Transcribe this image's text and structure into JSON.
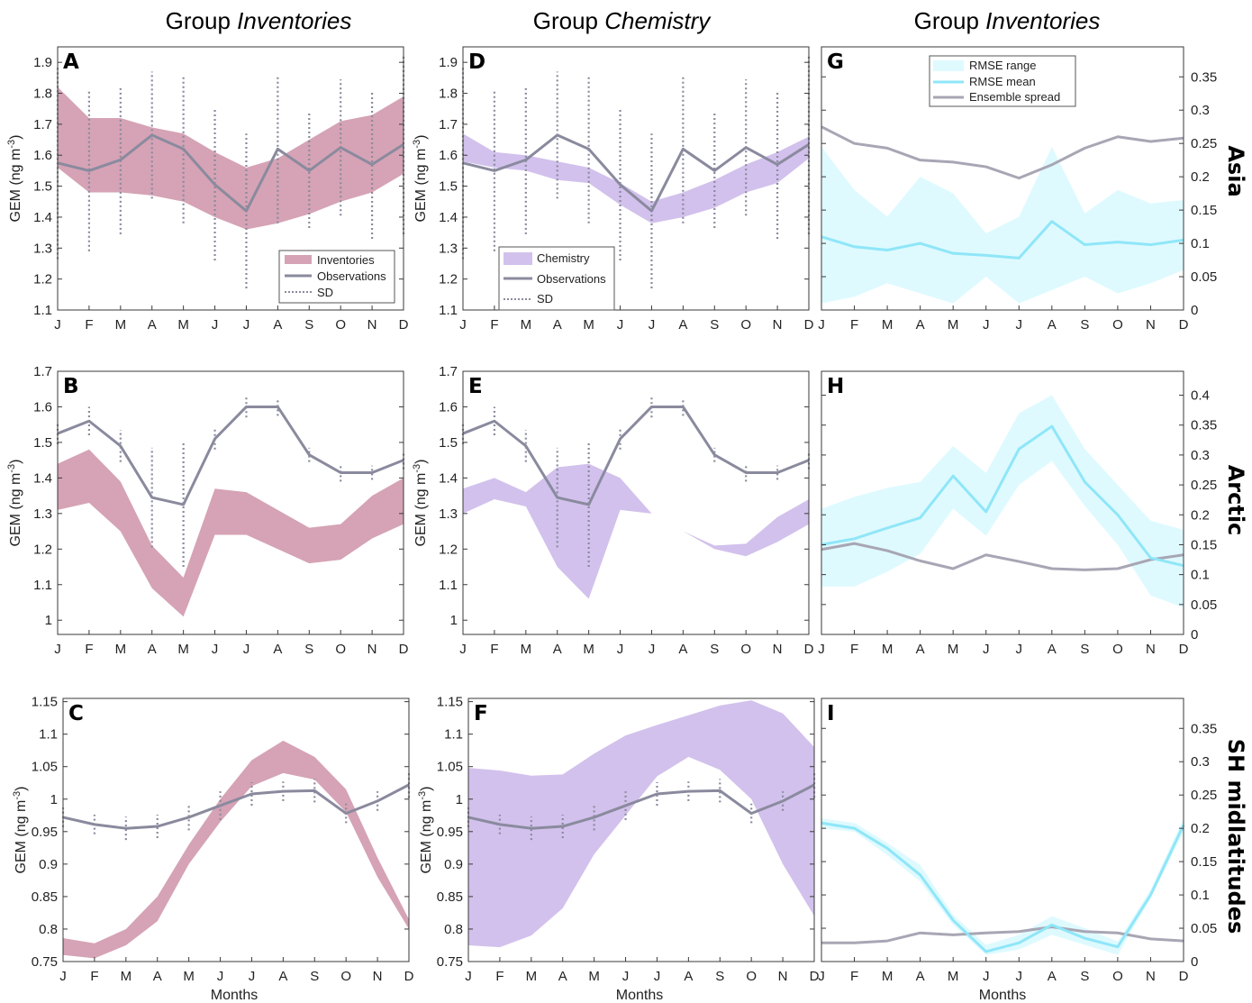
{
  "columns": [
    {
      "prefix": "Group ",
      "name": "Inventories"
    },
    {
      "prefix": "Group ",
      "name": "Chemistry"
    },
    {
      "prefix": "Group ",
      "name": "Inventories"
    }
  ],
  "rows": [
    "Asia",
    "Arctic",
    "SH midlatitudes"
  ],
  "ylabel": "GEM (ng m-3)",
  "xlabel": "Months",
  "months": [
    "J",
    "F",
    "M",
    "A",
    "M",
    "J",
    "J",
    "A",
    "S",
    "O",
    "N",
    "D"
  ],
  "colors": {
    "inventories": "#d5a3b5",
    "chemistry": "#d2c1ec",
    "observations": "#8a8a9e",
    "rmse_range": "#defaff",
    "rmse_mean": "#8fe6f8",
    "spread": "#a8a6b4"
  },
  "legends": {
    "inventories": [
      "Inventories",
      "Observations",
      "SD"
    ],
    "chemistry": [
      "Chemistry",
      "Observations",
      "SD"
    ],
    "rmse": [
      "RMSE range",
      "RMSE mean",
      "Ensemble spread"
    ]
  },
  "chart_data": [
    {
      "panel": "A",
      "type": "area",
      "row": "Asia",
      "group": "Inventories",
      "ylim": [
        1.1,
        1.95
      ],
      "yticks": [
        1.1,
        1.2,
        1.3,
        1.4,
        1.5,
        1.6,
        1.7,
        1.8,
        1.9
      ],
      "band": {
        "name": "Inventories",
        "lower": [
          1.56,
          1.48,
          1.48,
          1.47,
          1.45,
          1.4,
          1.36,
          1.38,
          1.41,
          1.45,
          1.48,
          1.54
        ],
        "upper": [
          1.82,
          1.72,
          1.72,
          1.69,
          1.67,
          1.61,
          1.56,
          1.59,
          1.65,
          1.71,
          1.73,
          1.79
        ]
      },
      "observations": [
        1.575,
        1.55,
        1.585,
        1.665,
        1.62,
        1.505,
        1.42,
        1.62,
        1.55,
        1.625,
        1.57,
        1.635
      ],
      "sd": [
        0.31,
        0.26,
        0.24,
        0.205,
        0.24,
        0.245,
        0.25,
        0.24,
        0.185,
        0.22,
        0.24,
        0.29
      ],
      "legend": "inventories"
    },
    {
      "panel": "B",
      "type": "area",
      "row": "Arctic",
      "group": "Inventories",
      "ylim": [
        0.96,
        1.7
      ],
      "yticks": [
        1,
        1.1,
        1.2,
        1.3,
        1.4,
        1.5,
        1.6,
        1.7
      ],
      "band": {
        "name": "Inventories",
        "lower": [
          1.31,
          1.33,
          1.25,
          1.09,
          1.01,
          1.24,
          1.24,
          1.2,
          1.16,
          1.17,
          1.23,
          1.27
        ],
        "upper": [
          1.44,
          1.48,
          1.39,
          1.21,
          1.12,
          1.37,
          1.36,
          1.31,
          1.26,
          1.27,
          1.35,
          1.4
        ]
      },
      "observations": [
        1.525,
        1.56,
        1.49,
        1.345,
        1.325,
        1.51,
        1.6,
        1.6,
        1.465,
        1.415,
        1.415,
        1.45
      ],
      "sd": [
        0.03,
        0.04,
        0.045,
        0.14,
        0.175,
        0.03,
        0.03,
        0.025,
        0.02,
        0.025,
        0.02,
        0.025
      ],
      "legend": null
    },
    {
      "panel": "C",
      "type": "area",
      "row": "SH midlatitudes",
      "group": "Inventories",
      "ylim": [
        0.75,
        1.155
      ],
      "yticks": [
        0.75,
        0.8,
        0.85,
        0.9,
        0.95,
        1,
        1.05,
        1.1,
        1.15
      ],
      "band": {
        "name": "Inventories",
        "lower": [
          0.76,
          0.755,
          0.775,
          0.812,
          0.9,
          0.965,
          1.02,
          1.04,
          1.03,
          0.98,
          0.88,
          0.8
        ],
        "upper": [
          0.786,
          0.778,
          0.8,
          0.85,
          0.93,
          1.0,
          1.06,
          1.09,
          1.065,
          1.015,
          0.91,
          0.815
        ]
      },
      "observations": [
        0.972,
        0.961,
        0.955,
        0.958,
        0.972,
        0.99,
        1.008,
        1.012,
        1.013,
        0.978,
        0.997,
        1.022
      ],
      "sd": [
        0.015,
        0.015,
        0.018,
        0.018,
        0.02,
        0.022,
        0.018,
        0.015,
        0.018,
        0.015,
        0.015,
        0.02
      ],
      "legend": null
    },
    {
      "panel": "D",
      "type": "area",
      "row": "Asia",
      "group": "Chemistry",
      "ylim": [
        1.1,
        1.95
      ],
      "yticks": [
        1.1,
        1.2,
        1.3,
        1.4,
        1.5,
        1.6,
        1.7,
        1.8,
        1.9
      ],
      "band": {
        "name": "Chemistry",
        "lower": [
          1.58,
          1.56,
          1.55,
          1.52,
          1.51,
          1.44,
          1.38,
          1.4,
          1.43,
          1.48,
          1.51,
          1.59
        ],
        "upper": [
          1.67,
          1.61,
          1.6,
          1.58,
          1.56,
          1.51,
          1.45,
          1.48,
          1.52,
          1.57,
          1.61,
          1.66
        ]
      },
      "observations": [
        1.575,
        1.55,
        1.585,
        1.665,
        1.62,
        1.505,
        1.42,
        1.62,
        1.55,
        1.625,
        1.57,
        1.635
      ],
      "sd": [
        0.31,
        0.26,
        0.24,
        0.205,
        0.24,
        0.245,
        0.25,
        0.24,
        0.185,
        0.22,
        0.24,
        0.29
      ],
      "legend": "chemistry"
    },
    {
      "panel": "E",
      "type": "area",
      "row": "Arctic",
      "group": "Chemistry",
      "ylim": [
        0.96,
        1.7
      ],
      "yticks": [
        1,
        1.1,
        1.2,
        1.3,
        1.4,
        1.5,
        1.6,
        1.7
      ],
      "band": {
        "name": "Chemistry",
        "lower": [
          1.3,
          1.34,
          1.32,
          1.15,
          1.06,
          1.31,
          1.3,
          1.25,
          1.2,
          1.18,
          1.22,
          1.27
        ],
        "upper": [
          1.37,
          1.4,
          1.36,
          1.43,
          1.44,
          1.4,
          1.3,
          1.25,
          1.21,
          1.215,
          1.29,
          1.34
        ]
      },
      "observations": [
        1.525,
        1.56,
        1.49,
        1.345,
        1.325,
        1.51,
        1.6,
        1.6,
        1.465,
        1.415,
        1.415,
        1.45
      ],
      "sd": [
        0.03,
        0.04,
        0.045,
        0.14,
        0.175,
        0.03,
        0.03,
        0.025,
        0.02,
        0.025,
        0.02,
        0.025
      ],
      "legend": null
    },
    {
      "panel": "F",
      "type": "area",
      "row": "SH midlatitudes",
      "group": "Chemistry",
      "ylim": [
        0.75,
        1.155
      ],
      "yticks": [
        0.75,
        0.8,
        0.85,
        0.9,
        0.95,
        1,
        1.05,
        1.1,
        1.15
      ],
      "band": {
        "name": "Chemistry",
        "lower": [
          0.775,
          0.772,
          0.79,
          0.832,
          0.915,
          0.975,
          1.035,
          1.065,
          1.045,
          1.0,
          0.9,
          0.82
        ],
        "upper": [
          1.048,
          1.044,
          1.036,
          1.038,
          1.07,
          1.098,
          1.114,
          1.129,
          1.144,
          1.152,
          1.132,
          1.08
        ]
      },
      "observations": [
        0.972,
        0.961,
        0.955,
        0.958,
        0.972,
        0.99,
        1.008,
        1.012,
        1.013,
        0.978,
        0.997,
        1.022
      ],
      "sd": [
        0.015,
        0.015,
        0.018,
        0.018,
        0.02,
        0.022,
        0.018,
        0.015,
        0.018,
        0.015,
        0.015,
        0.02
      ],
      "legend": null
    },
    {
      "panel": "G",
      "type": "line",
      "row": "Asia",
      "group": "Inventories",
      "ylim": [
        0,
        0.395
      ],
      "yticks": [
        0,
        0.05,
        0.1,
        0.15,
        0.2,
        0.25,
        0.3,
        0.35
      ],
      "rmse_range": {
        "lower": [
          0.01,
          0.02,
          0.04,
          0.025,
          0.01,
          0.05,
          0.01,
          0.03,
          0.05,
          0.025,
          0.04,
          0.06
        ],
        "upper": [
          0.245,
          0.18,
          0.14,
          0.2,
          0.175,
          0.115,
          0.14,
          0.245,
          0.145,
          0.18,
          0.16,
          0.165
        ]
      },
      "rmse_mean": [
        0.11,
        0.095,
        0.09,
        0.1,
        0.085,
        0.082,
        0.078,
        0.133,
        0.098,
        0.102,
        0.098,
        0.105
      ],
      "ensemble_spread": [
        0.275,
        0.25,
        0.243,
        0.225,
        0.222,
        0.215,
        0.198,
        0.218,
        0.243,
        0.26,
        0.253,
        0.258
      ],
      "legend": "rmse"
    },
    {
      "panel": "H",
      "type": "line",
      "row": "Arctic",
      "group": "Inventories",
      "ylim": [
        0,
        0.44
      ],
      "yticks": [
        0,
        0.05,
        0.1,
        0.15,
        0.2,
        0.25,
        0.3,
        0.35,
        0.4
      ],
      "rmse_range": {
        "lower": [
          0.08,
          0.08,
          0.105,
          0.135,
          0.21,
          0.165,
          0.25,
          0.29,
          0.215,
          0.15,
          0.065,
          0.045
        ],
        "upper": [
          0.21,
          0.23,
          0.245,
          0.255,
          0.315,
          0.27,
          0.37,
          0.4,
          0.31,
          0.25,
          0.19,
          0.175
        ]
      },
      "rmse_mean": [
        0.15,
        0.16,
        0.178,
        0.195,
        0.265,
        0.205,
        0.31,
        0.348,
        0.255,
        0.2,
        0.128,
        0.115
      ],
      "ensemble_spread": [
        0.142,
        0.152,
        0.14,
        0.123,
        0.11,
        0.133,
        0.122,
        0.11,
        0.108,
        0.11,
        0.125,
        0.133
      ],
      "legend": null
    },
    {
      "panel": "I",
      "type": "line",
      "row": "SH midlatitudes",
      "group": "Inventories",
      "ylim": [
        0,
        0.395
      ],
      "yticks": [
        0,
        0.05,
        0.1,
        0.15,
        0.2,
        0.25,
        0.3,
        0.35
      ],
      "rmse_range": {
        "lower": [
          0.2,
          0.195,
          0.16,
          0.12,
          0.055,
          0.01,
          0.018,
          0.04,
          0.025,
          0.01,
          0.095,
          0.195
        ],
        "upper": [
          0.215,
          0.208,
          0.178,
          0.145,
          0.07,
          0.025,
          0.04,
          0.068,
          0.05,
          0.03,
          0.108,
          0.215
        ]
      },
      "rmse_mean": [
        0.208,
        0.2,
        0.17,
        0.13,
        0.062,
        0.015,
        0.028,
        0.055,
        0.035,
        0.022,
        0.1,
        0.205
      ],
      "ensemble_spread": [
        0.028,
        0.028,
        0.031,
        0.043,
        0.04,
        0.043,
        0.045,
        0.052,
        0.045,
        0.043,
        0.034,
        0.031
      ],
      "legend": null
    }
  ]
}
